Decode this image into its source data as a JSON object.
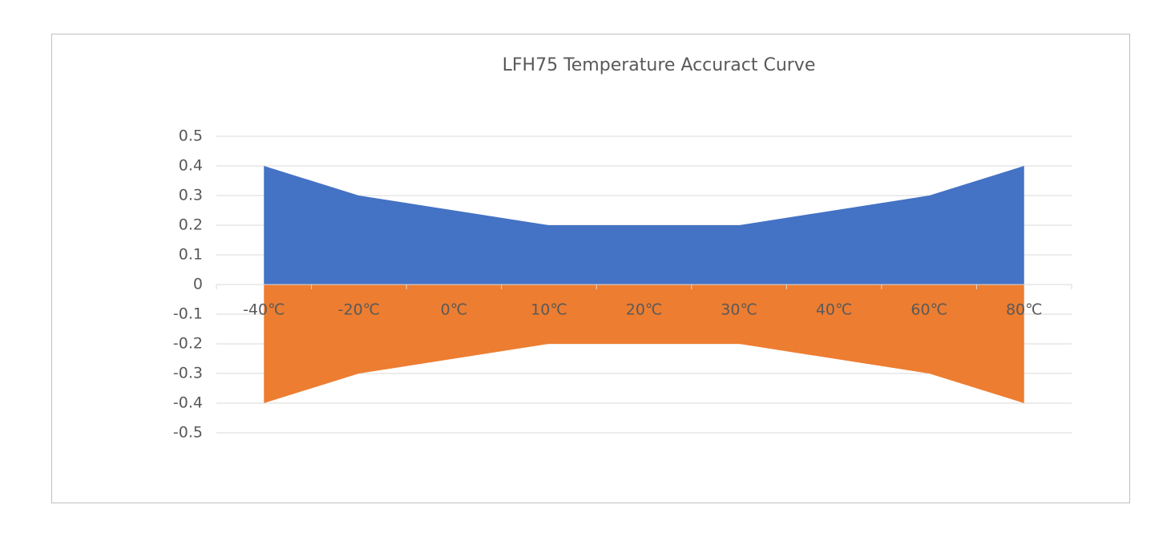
{
  "chart_data": {
    "type": "area",
    "title": "LFH75 Temperature Accuract Curve",
    "categories": [
      "-40℃",
      "-20℃",
      "0℃",
      "10℃",
      "20℃",
      "30℃",
      "40℃",
      "60℃",
      "80℃"
    ],
    "series": [
      {
        "color": "#4472c4",
        "values": [
          0.4,
          0.3,
          0.25,
          0.2,
          0.2,
          0.2,
          0.25,
          0.3,
          0.4
        ]
      },
      {
        "color": "#ed7d31",
        "values": [
          -0.4,
          -0.3,
          -0.25,
          -0.2,
          -0.2,
          -0.2,
          -0.25,
          -0.3,
          -0.4
        ]
      }
    ],
    "ylim": [
      -0.5,
      0.5
    ],
    "yticks": [
      0.5,
      0.4,
      0.3,
      0.2,
      0.1,
      0,
      -0.1,
      -0.2,
      -0.3,
      -0.4,
      -0.5
    ],
    "grid": true
  }
}
